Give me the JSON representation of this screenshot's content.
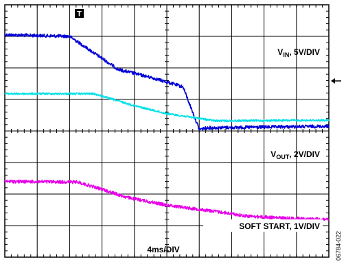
{
  "chart_data": {
    "type": "line",
    "title": "",
    "grid": true,
    "timebase": "4ms/DIV",
    "divisions": {
      "x": 10,
      "y": 8
    },
    "x_unit": "ms",
    "x_per_div": 4,
    "trigger_marker": "T",
    "series": [
      {
        "name": "VIN",
        "label_main": "V",
        "label_sub": "IN",
        "label_rest": ", 5V/DIV",
        "color": "#0000d8",
        "noise_div": 0.05,
        "ms": [
          0,
          8,
          14,
          18,
          22,
          24,
          25,
          40
        ],
        "div": [
          0.95,
          1.0,
          2.05,
          2.3,
          2.6,
          3.95,
          3.9,
          3.85
        ]
      },
      {
        "name": "VOUT",
        "label_main": "V",
        "label_sub": "OUT",
        "label_rest": ", 2V/DIV",
        "color": "#00e0e8",
        "noise_div": 0.03,
        "ms": [
          0,
          11,
          16,
          20,
          24,
          26,
          40
        ],
        "div": [
          2.82,
          2.82,
          3.2,
          3.45,
          3.6,
          3.68,
          3.66
        ]
      },
      {
        "name": "SOFT START",
        "label_main": "SOFT START",
        "label_sub": "",
        "label_rest": ", 1V/DIV",
        "color": "#e800e8",
        "noise_div": 0.05,
        "ms": [
          0,
          9,
          12,
          15,
          20,
          26,
          30,
          35,
          40
        ],
        "div": [
          5.6,
          5.62,
          5.85,
          6.1,
          6.35,
          6.55,
          6.7,
          6.77,
          6.8
        ]
      }
    ]
  },
  "figure_id": "06784-022"
}
